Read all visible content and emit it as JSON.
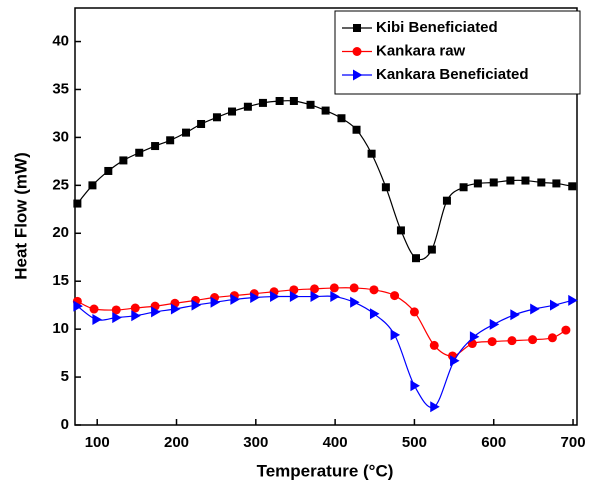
{
  "chart_data": {
    "type": "line",
    "x_label": "Temperature (°C)",
    "y_label": "Heat Flow (mW)",
    "xlim": [
      72,
      705
    ],
    "ylim": [
      0,
      43.5
    ],
    "xticks": [
      100,
      200,
      300,
      400,
      500,
      600,
      700
    ],
    "yticks": [
      0,
      5,
      10,
      15,
      20,
      25,
      30,
      35,
      40
    ],
    "legend": "upper right",
    "series": [
      {
        "name": "Kibi Beneficiated",
        "color": "#000000",
        "marker": "square",
        "x": [
          75,
          94,
          114,
          133,
          153,
          173,
          192,
          212,
          231,
          251,
          270,
          290,
          309,
          330,
          348,
          369,
          388,
          408,
          427,
          446,
          464,
          483,
          502,
          522,
          541,
          562,
          580,
          600,
          621,
          640,
          660,
          679,
          699
        ],
        "values": [
          23.1,
          25.0,
          26.5,
          27.6,
          28.4,
          29.1,
          29.7,
          30.5,
          31.4,
          32.1,
          32.7,
          33.2,
          33.6,
          33.8,
          33.8,
          33.4,
          32.8,
          32.0,
          30.8,
          28.3,
          24.8,
          20.3,
          17.4,
          18.3,
          23.4,
          24.8,
          25.2,
          25.3,
          25.5,
          25.5,
          25.3,
          25.2,
          24.9
        ]
      },
      {
        "name": "Kankara raw",
        "color": "#ff0000",
        "marker": "circle",
        "x": [
          75,
          96,
          124,
          148,
          173,
          198,
          224,
          248,
          273,
          298,
          323,
          348,
          374,
          399,
          424,
          449,
          475,
          500,
          525,
          548,
          573,
          598,
          623,
          649,
          674,
          691
        ],
        "values": [
          12.9,
          12.1,
          12.0,
          12.2,
          12.4,
          12.7,
          13.0,
          13.3,
          13.5,
          13.7,
          13.9,
          14.1,
          14.2,
          14.3,
          14.3,
          14.1,
          13.5,
          11.8,
          8.3,
          7.2,
          8.5,
          8.7,
          8.8,
          8.9,
          9.1,
          9.9
        ]
      },
      {
        "name": "Kankara  Beneficiated",
        "color": "#0000ff",
        "marker": "triangle-right",
        "x": [
          75,
          99,
          124,
          148,
          173,
          198,
          224,
          248,
          273,
          298,
          323,
          348,
          374,
          399,
          424,
          449,
          475,
          500,
          525,
          550,
          575,
          600,
          626,
          651,
          676,
          699
        ],
        "values": [
          12.4,
          11.0,
          11.2,
          11.4,
          11.8,
          12.1,
          12.5,
          12.8,
          13.1,
          13.3,
          13.4,
          13.4,
          13.4,
          13.4,
          12.8,
          11.6,
          9.4,
          4.1,
          1.9,
          6.7,
          9.2,
          10.5,
          11.5,
          12.1,
          12.5,
          13.0
        ]
      }
    ]
  }
}
